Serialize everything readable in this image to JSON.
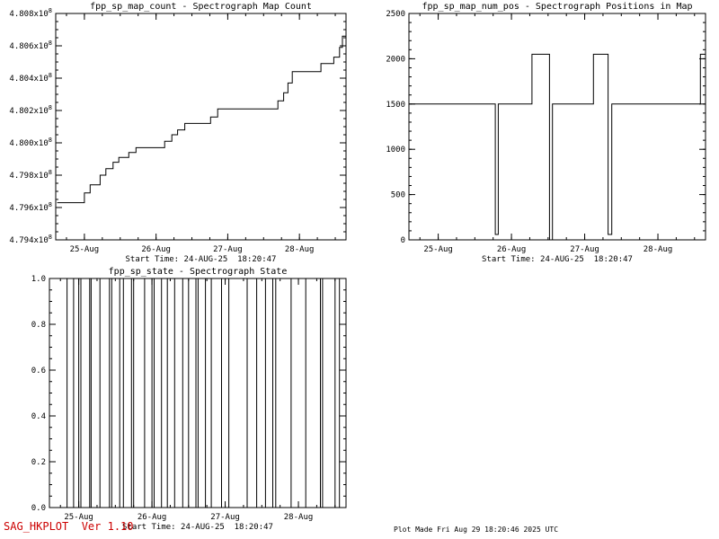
{
  "colors": {
    "accent_red": "#cc0000",
    "plot_stroke": "#000000",
    "background": "#ffffff"
  },
  "footer": {
    "left": "SAG_HKPLOT  Ver 1.10",
    "right": "Plot Made Fri Aug 29 18:20:46 2025 UTC"
  },
  "chart_data": [
    {
      "id": "fpp_sp_map_count",
      "type": "line",
      "title": "fpp_sp_map_count - Spectrograph Map Count",
      "xlabel": "Start Time: 24-AUG-25  18:20:47",
      "xlim": [
        24.6,
        28.65
      ],
      "ylim": [
        4.794,
        4.808
      ],
      "y_unit": "x10^8",
      "x_minor": 0.25,
      "y_minor": 0.0005,
      "grid": false,
      "legend": false,
      "x_ticks": [
        {
          "v": 25,
          "label": "25-Aug"
        },
        {
          "v": 26,
          "label": "26-Aug"
        },
        {
          "v": 27,
          "label": "27-Aug"
        },
        {
          "v": 28,
          "label": "28-Aug"
        }
      ],
      "y_ticks": [
        {
          "v": 4.794,
          "label": "4.794x10^8"
        },
        {
          "v": 4.796,
          "label": "4.796x10^8"
        },
        {
          "v": 4.798,
          "label": "4.798x10^8"
        },
        {
          "v": 4.8,
          "label": "4.800x10^8"
        },
        {
          "v": 4.802,
          "label": "4.802x10^8"
        },
        {
          "v": 4.804,
          "label": "4.804x10^8"
        },
        {
          "v": 4.806,
          "label": "4.806x10^8"
        },
        {
          "v": 4.808,
          "label": "4.808x10^8"
        }
      ],
      "series": [
        {
          "name": "fpp_sp_map_count",
          "points": [
            [
              24.62,
              4.7963
            ],
            [
              25.0,
              4.7963
            ],
            [
              25.0,
              4.7969
            ],
            [
              25.08,
              4.7969
            ],
            [
              25.08,
              4.7974
            ],
            [
              25.22,
              4.7974
            ],
            [
              25.22,
              4.798
            ],
            [
              25.3,
              4.798
            ],
            [
              25.3,
              4.7984
            ],
            [
              25.4,
              4.7984
            ],
            [
              25.4,
              4.7988
            ],
            [
              25.48,
              4.7988
            ],
            [
              25.48,
              4.7991
            ],
            [
              25.62,
              4.7991
            ],
            [
              25.62,
              4.7994
            ],
            [
              25.72,
              4.7994
            ],
            [
              25.72,
              4.7997
            ],
            [
              26.12,
              4.7997
            ],
            [
              26.12,
              4.8001
            ],
            [
              26.22,
              4.8001
            ],
            [
              26.22,
              4.8005
            ],
            [
              26.3,
              4.8005
            ],
            [
              26.3,
              4.8008
            ],
            [
              26.4,
              4.8008
            ],
            [
              26.4,
              4.8012
            ],
            [
              26.76,
              4.8012
            ],
            [
              26.76,
              4.8016
            ],
            [
              26.86,
              4.8016
            ],
            [
              26.86,
              4.8021
            ],
            [
              27.7,
              4.8021
            ],
            [
              27.7,
              4.8026
            ],
            [
              27.78,
              4.8026
            ],
            [
              27.78,
              4.8031
            ],
            [
              27.84,
              4.8031
            ],
            [
              27.84,
              4.8037
            ],
            [
              27.9,
              4.8037
            ],
            [
              27.9,
              4.8044
            ],
            [
              28.3,
              4.8044
            ],
            [
              28.3,
              4.8049
            ],
            [
              28.48,
              4.8049
            ],
            [
              28.48,
              4.8053
            ],
            [
              28.56,
              4.8053
            ],
            [
              28.56,
              4.8059
            ],
            [
              28.6,
              4.8059
            ],
            [
              28.6,
              4.8066
            ],
            [
              28.65,
              4.8066
            ]
          ]
        }
      ]
    },
    {
      "id": "fpp_sp_map_num_pos",
      "type": "line",
      "title": "fpp_sp_map_num_pos - Spectrograph Positions in Map",
      "xlabel": "Start Time: 24-AUG-25  18:20:47",
      "xlim": [
        24.6,
        28.65
      ],
      "ylim": [
        0,
        2500
      ],
      "x_minor": 0.25,
      "y_minor": 100,
      "grid": false,
      "legend": false,
      "x_ticks": [
        {
          "v": 25,
          "label": "25-Aug"
        },
        {
          "v": 26,
          "label": "26-Aug"
        },
        {
          "v": 27,
          "label": "27-Aug"
        },
        {
          "v": 28,
          "label": "28-Aug"
        }
      ],
      "y_ticks": [
        {
          "v": 0,
          "label": "0"
        },
        {
          "v": 500,
          "label": "500"
        },
        {
          "v": 1000,
          "label": "1000"
        },
        {
          "v": 1500,
          "label": "1500"
        },
        {
          "v": 2000,
          "label": "2000"
        },
        {
          "v": 2500,
          "label": "2500"
        }
      ],
      "series": [
        {
          "name": "fpp_sp_map_num_pos",
          "points": [
            [
              24.62,
              1500
            ],
            [
              25.78,
              1500
            ],
            [
              25.78,
              60
            ],
            [
              25.82,
              60
            ],
            [
              25.82,
              1500
            ],
            [
              26.28,
              1500
            ],
            [
              26.28,
              2050
            ],
            [
              26.52,
              2050
            ],
            [
              26.52,
              0
            ],
            [
              26.56,
              0
            ],
            [
              26.56,
              1500
            ],
            [
              27.12,
              1500
            ],
            [
              27.12,
              2050
            ],
            [
              27.32,
              2050
            ],
            [
              27.32,
              60
            ],
            [
              27.37,
              60
            ],
            [
              27.37,
              1500
            ],
            [
              28.58,
              1500
            ],
            [
              28.58,
              2050
            ],
            [
              28.65,
              2050
            ]
          ]
        }
      ]
    },
    {
      "id": "fpp_sp_state",
      "type": "line",
      "title": "fpp_sp_state - Spectrograph State",
      "xlabel": "Start Time: 24-AUG-25  18:20:47",
      "xlim": [
        24.6,
        28.65
      ],
      "ylim": [
        0.0,
        1.0
      ],
      "x_minor": 0.25,
      "y_minor": 0.05,
      "grid": false,
      "legend": false,
      "x_ticks": [
        {
          "v": 25,
          "label": "25-Aug"
        },
        {
          "v": 26,
          "label": "26-Aug"
        },
        {
          "v": 27,
          "label": "27-Aug"
        },
        {
          "v": 28,
          "label": "28-Aug"
        }
      ],
      "y_ticks": [
        {
          "v": 0.0,
          "label": "0.0"
        },
        {
          "v": 0.2,
          "label": "0.2"
        },
        {
          "v": 0.4,
          "label": "0.4"
        },
        {
          "v": 0.6,
          "label": "0.6"
        },
        {
          "v": 0.8,
          "label": "0.8"
        },
        {
          "v": 1.0,
          "label": "1.0"
        }
      ],
      "series": [
        {
          "name": "fpp_sp_state",
          "baseline": 1.0,
          "low": 0.0,
          "dips": [
            24.84,
            24.93,
            25.0,
            25.03,
            25.15,
            25.17,
            25.29,
            25.42,
            25.45,
            25.56,
            25.61,
            25.72,
            25.75,
            25.9,
            26.0,
            26.03,
            26.13,
            26.21,
            26.31,
            26.42,
            26.5,
            26.6,
            26.63,
            26.73,
            26.81,
            26.95,
            27.05,
            27.3,
            27.43,
            27.55,
            27.65,
            27.69,
            27.9,
            28.1,
            28.3,
            28.33,
            28.5,
            28.56
          ]
        }
      ]
    }
  ]
}
